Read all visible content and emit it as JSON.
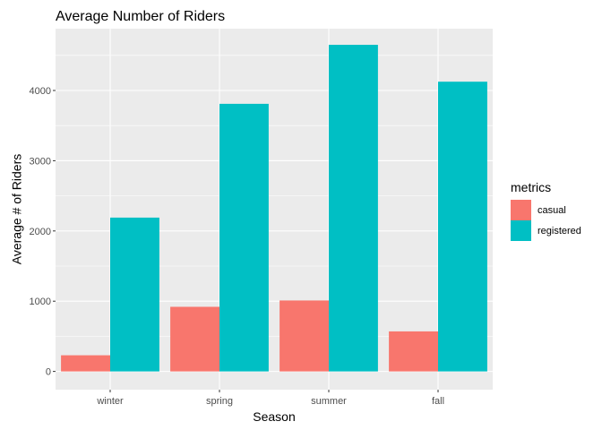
{
  "chart_data": {
    "type": "bar",
    "title": "Average Number of Riders",
    "xlabel": "Season",
    "ylabel": "Average # of Riders",
    "categories": [
      "winter",
      "spring",
      "summer",
      "fall"
    ],
    "series": [
      {
        "name": "casual",
        "values": [
          230,
          920,
          1010,
          570
        ],
        "color": "#F8766D"
      },
      {
        "name": "registered",
        "values": [
          2190,
          3810,
          4650,
          4125
        ],
        "color": "#00BFC4"
      }
    ],
    "ylim": [
      -260,
      4880
    ],
    "yticks": [
      0,
      1000,
      2000,
      3000,
      4000
    ],
    "grid": true,
    "panel_background": "#EBEBEB",
    "legend": {
      "title": "metrics",
      "position": "right"
    }
  }
}
